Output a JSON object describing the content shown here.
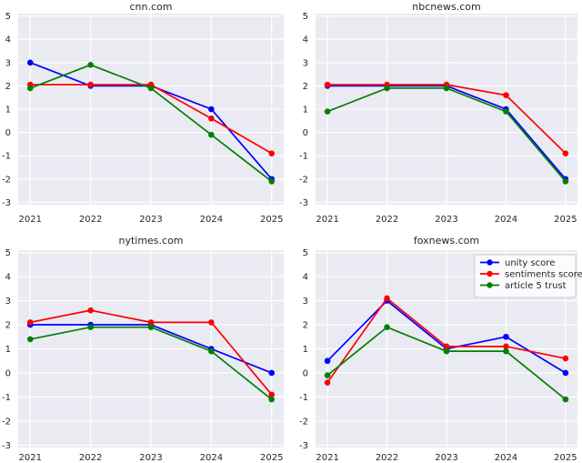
{
  "figure": {
    "background": "#ffffff",
    "axes_background": "#eaeaf2",
    "grid_color": "#ffffff",
    "tick_color": "#262626"
  },
  "legend": {
    "position": "upper right",
    "items": [
      "unity score",
      "sentiments score",
      "article 5 trust"
    ],
    "colors": [
      "#0000ff",
      "#ff0000",
      "#008000"
    ]
  },
  "chart_data": [
    {
      "type": "line",
      "title": "cnn.com",
      "x": [
        2021,
        2022,
        2023,
        2024,
        2025
      ],
      "xlim": [
        2020.8,
        2025.2
      ],
      "ylim": [
        -3.1,
        5.1
      ],
      "yticks": [
        5,
        4,
        3,
        2,
        1,
        0,
        -1,
        -2,
        -3
      ],
      "grid": true,
      "legend": false,
      "series": [
        {
          "name": "unity score",
          "color": "#0000ff",
          "values": [
            3.0,
            2.0,
            2.0,
            1.0,
            -2.0
          ]
        },
        {
          "name": "sentiments score",
          "color": "#ff0000",
          "values": [
            2.05,
            2.05,
            2.05,
            0.6,
            -0.9
          ]
        },
        {
          "name": "article 5 trust",
          "color": "#008000",
          "values": [
            1.9,
            2.9,
            1.9,
            -0.1,
            -2.1
          ]
        }
      ]
    },
    {
      "type": "line",
      "title": "nbcnews.com",
      "x": [
        2021,
        2022,
        2023,
        2024,
        2025
      ],
      "xlim": [
        2020.8,
        2025.2
      ],
      "ylim": [
        -3.1,
        5.1
      ],
      "yticks": [
        5,
        4,
        3,
        2,
        1,
        0,
        -1,
        -2,
        -3
      ],
      "grid": true,
      "legend": false,
      "series": [
        {
          "name": "unity score",
          "color": "#0000ff",
          "values": [
            2.0,
            2.0,
            2.0,
            1.0,
            -2.0
          ]
        },
        {
          "name": "sentiments score",
          "color": "#ff0000",
          "values": [
            2.05,
            2.05,
            2.05,
            1.6,
            -0.9
          ]
        },
        {
          "name": "article 5 trust",
          "color": "#008000",
          "values": [
            0.9,
            1.9,
            1.9,
            0.9,
            -2.1
          ]
        }
      ]
    },
    {
      "type": "line",
      "title": "nytimes.com",
      "x": [
        2021,
        2022,
        2023,
        2024,
        2025
      ],
      "xlim": [
        2020.8,
        2025.2
      ],
      "ylim": [
        -3.1,
        5.1
      ],
      "yticks": [
        5,
        4,
        3,
        2,
        1,
        0,
        -1,
        -2,
        -3
      ],
      "grid": true,
      "legend": false,
      "series": [
        {
          "name": "unity score",
          "color": "#0000ff",
          "values": [
            2.0,
            2.0,
            2.0,
            1.0,
            0.0
          ]
        },
        {
          "name": "sentiments score",
          "color": "#ff0000",
          "values": [
            2.1,
            2.6,
            2.1,
            2.1,
            -0.9
          ]
        },
        {
          "name": "article 5 trust",
          "color": "#008000",
          "values": [
            1.4,
            1.9,
            1.9,
            0.9,
            -1.1
          ]
        }
      ]
    },
    {
      "type": "line",
      "title": "foxnews.com",
      "x": [
        2021,
        2022,
        2023,
        2024,
        2025
      ],
      "xlim": [
        2020.8,
        2025.2
      ],
      "ylim": [
        -3.1,
        5.1
      ],
      "yticks": [
        5,
        4,
        3,
        2,
        1,
        0,
        -1,
        -2,
        -3
      ],
      "grid": true,
      "legend": true,
      "legend_position": "upper right",
      "series": [
        {
          "name": "unity score",
          "color": "#0000ff",
          "values": [
            0.5,
            3.0,
            1.0,
            1.5,
            0.0
          ]
        },
        {
          "name": "sentiments score",
          "color": "#ff0000",
          "values": [
            -0.4,
            3.1,
            1.1,
            1.1,
            0.6
          ]
        },
        {
          "name": "article 5 trust",
          "color": "#008000",
          "values": [
            -0.1,
            1.9,
            0.9,
            0.9,
            -1.1
          ]
        }
      ]
    }
  ]
}
